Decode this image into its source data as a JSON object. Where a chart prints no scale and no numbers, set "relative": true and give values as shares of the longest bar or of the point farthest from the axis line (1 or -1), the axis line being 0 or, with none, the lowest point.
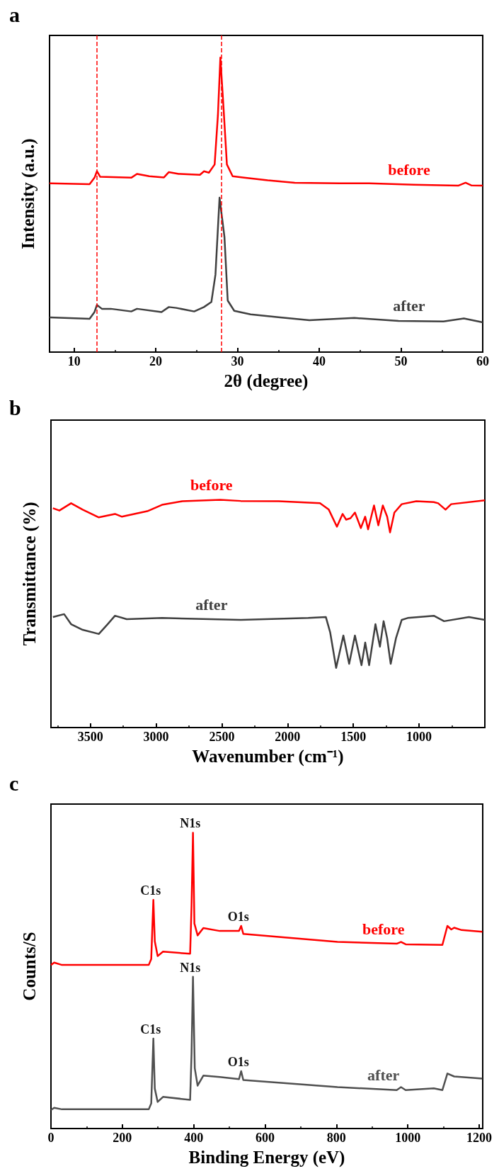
{
  "chart_data": [
    {
      "type": "line",
      "title": "a",
      "xlabel": "2θ (degree)",
      "ylabel": "Intensity (a.u.)",
      "relative": true,
      "xlim": [
        7,
        60
      ],
      "xticks": [
        10,
        20,
        30,
        40,
        50,
        60
      ],
      "series": [
        {
          "name": "before",
          "color": "#ff0000",
          "x": [
            7,
            11.9,
            12.5,
            12.8,
            13.2,
            17,
            17.7,
            19.2,
            21,
            21.6,
            22.8,
            25.4,
            25.9,
            26.5,
            27.2,
            27.6,
            27.9,
            28.3,
            28.7,
            29.4,
            30.8,
            33.7,
            37,
            42.5,
            46.1,
            51.6,
            57,
            57.9,
            58.6,
            60
          ],
          "values": [
            0.573,
            0.57,
            0.592,
            0.614,
            0.595,
            0.592,
            0.605,
            0.597,
            0.593,
            0.611,
            0.605,
            0.602,
            0.614,
            0.609,
            0.637,
            0.804,
            1,
            0.823,
            0.637,
            0.597,
            0.592,
            0.583,
            0.575,
            0.573,
            0.573,
            0.568,
            0.565,
            0.575,
            0.566,
            0.565
          ]
        },
        {
          "name": "after",
          "color": "#404040",
          "x": [
            7,
            11.9,
            12.5,
            12.8,
            13.4,
            14.5,
            17,
            17.7,
            20.7,
            21.6,
            22.5,
            24.7,
            25.9,
            26.8,
            27.3,
            27.8,
            28.4,
            28.8,
            29.6,
            31.6,
            35.2,
            38.8,
            44.3,
            49.7,
            55.2,
            57.7,
            60
          ],
          "values": [
            0.118,
            0.113,
            0.136,
            0.16,
            0.147,
            0.147,
            0.138,
            0.147,
            0.136,
            0.153,
            0.15,
            0.138,
            0.153,
            0.17,
            0.263,
            0.524,
            0.391,
            0.175,
            0.14,
            0.128,
            0.118,
            0.108,
            0.116,
            0.106,
            0.104,
            0.114,
            0.101
          ]
        }
      ],
      "ref_lines": [
        {
          "axis": "x",
          "value": 12.8,
          "color": "#ff0000",
          "line_style": "dashed"
        },
        {
          "axis": "x",
          "value": 28,
          "color": "#ff0000",
          "line_style": "dashed"
        }
      ]
    },
    {
      "type": "line",
      "title": "b",
      "xlabel": "Wavenumber (cm⁻¹)",
      "ylabel": "Transmittance (%)",
      "relative": true,
      "xlim": [
        3800,
        500
      ],
      "xticks": [
        3500,
        3000,
        2500,
        2000,
        1500,
        1000
      ],
      "series": [
        {
          "name": "before",
          "color": "#ff0000",
          "x": [
            3785,
            3736,
            3647,
            3559,
            3436,
            3313,
            3260,
            3067,
            2955,
            2800,
            2512,
            2357,
            2068,
            1754,
            1687,
            1625,
            1582,
            1555,
            1522,
            1488,
            1443,
            1410,
            1388,
            1343,
            1310,
            1276,
            1243,
            1221,
            1188,
            1132,
            1021,
            888,
            855,
            799,
            756,
            500
          ],
          "values": [
            0.963,
            0.953,
            0.985,
            0.957,
            0.923,
            0.938,
            0.926,
            0.95,
            0.978,
            0.994,
            1,
            0.995,
            0.994,
            0.985,
            0.957,
            0.882,
            0.938,
            0.913,
            0.919,
            0.944,
            0.876,
            0.926,
            0.87,
            0.975,
            0.888,
            0.975,
            0.926,
            0.857,
            0.944,
            0.981,
            0.994,
            0.99,
            0.985,
            0.957,
            0.981,
            0.998
          ]
        },
        {
          "name": "after",
          "color": "#404040",
          "x": [
            3785,
            3700,
            3647,
            3559,
            3436,
            3369,
            3313,
            3224,
            2955,
            2357,
            1843,
            1709,
            1676,
            1631,
            1576,
            1532,
            1488,
            1438,
            1410,
            1380,
            1332,
            1298,
            1270,
            1243,
            1216,
            1176,
            1132,
            1087,
            888,
            810,
            621,
            500
          ],
          "values": [
            0.485,
            0.498,
            0.454,
            0.429,
            0.411,
            0.454,
            0.491,
            0.476,
            0.481,
            0.473,
            0.481,
            0.485,
            0.417,
            0.262,
            0.404,
            0.28,
            0.404,
            0.274,
            0.373,
            0.274,
            0.454,
            0.355,
            0.467,
            0.392,
            0.28,
            0.392,
            0.473,
            0.481,
            0.491,
            0.467,
            0.485,
            0.473
          ]
        }
      ]
    },
    {
      "type": "line",
      "title": "c",
      "xlabel": "Binding Energy (eV)",
      "ylabel": "Counts/S",
      "relative": true,
      "xlim": [
        0,
        1210
      ],
      "xticks": [
        0,
        200,
        400,
        600,
        800,
        1000,
        1200
      ],
      "series": [
        {
          "name": "before",
          "color": "#ff0000",
          "x": [
            0,
            9,
            31,
            274,
            281,
            287,
            291,
            299,
            314,
            390,
            394,
            398,
            402,
            411,
            427,
            473,
            527,
            533,
            539,
            638,
            803,
            969,
            981,
            994,
            1097,
            1111,
            1122,
            1130,
            1151,
            1209
          ],
          "values": [
            0.553,
            0.561,
            0.553,
            0.553,
            0.573,
            0.773,
            0.633,
            0.583,
            0.598,
            0.591,
            0.753,
            1,
            0.693,
            0.653,
            0.678,
            0.668,
            0.668,
            0.685,
            0.658,
            0.648,
            0.631,
            0.625,
            0.631,
            0.623,
            0.621,
            0.685,
            0.673,
            0.679,
            0.671,
            0.665
          ]
        },
        {
          "name": "after",
          "color": "#505050",
          "x": [
            0,
            9,
            31,
            274,
            281,
            287,
            291,
            299,
            314,
            390,
            394,
            398,
            403,
            411,
            427,
            473,
            527,
            533,
            539,
            638,
            803,
            969,
            981,
            994,
            1073,
            1097,
            1111,
            1130,
            1209
          ],
          "values": [
            0.063,
            0.07,
            0.065,
            0.065,
            0.085,
            0.304,
            0.135,
            0.09,
            0.107,
            0.097,
            0.254,
            0.513,
            0.204,
            0.145,
            0.179,
            0.174,
            0.167,
            0.194,
            0.164,
            0.155,
            0.14,
            0.13,
            0.14,
            0.13,
            0.136,
            0.13,
            0.186,
            0.176,
            0.169
          ]
        }
      ],
      "annotations": [
        {
          "text": "C1s",
          "x": 287,
          "y": 0.773
        },
        {
          "text": "N1s",
          "x": 398,
          "y": 1
        },
        {
          "text": "O1s",
          "x": 533,
          "y": 0.685
        },
        {
          "text": "C1s",
          "x": 287,
          "y": 0.304
        },
        {
          "text": "N1s",
          "x": 398,
          "y": 0.513
        },
        {
          "text": "O1s",
          "x": 533,
          "y": 0.194
        }
      ]
    }
  ]
}
